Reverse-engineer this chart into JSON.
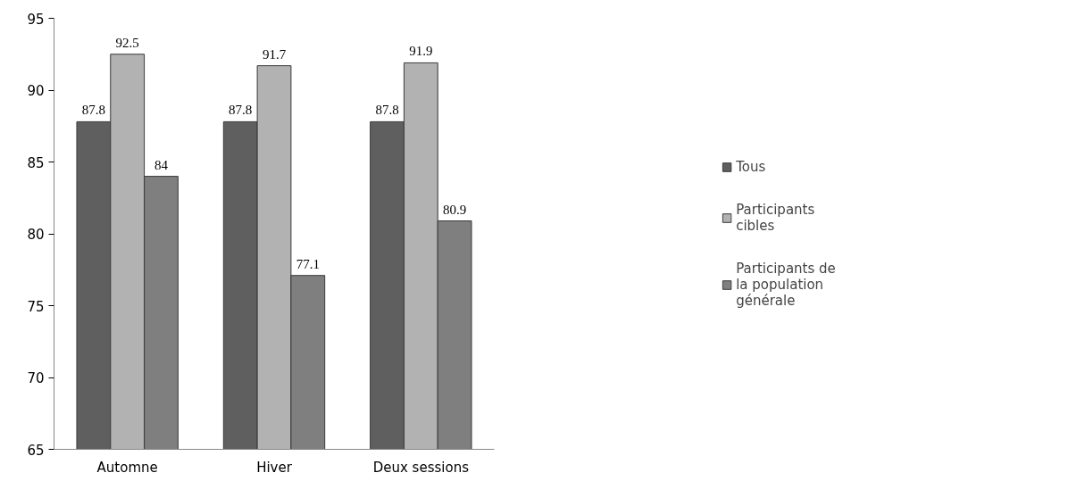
{
  "chart_data": {
    "type": "bar",
    "categories": [
      "Automne",
      "Hiver",
      "Deux sessions"
    ],
    "series": [
      {
        "name": "Tous",
        "color": "#5f5f5f",
        "values": [
          87.8,
          87.8,
          87.8
        ]
      },
      {
        "name": "Participants cibles",
        "color": "#b2b2b2",
        "values": [
          92.5,
          91.7,
          91.9
        ]
      },
      {
        "name": "Participants de la population générale",
        "color": "#7f7f7f",
        "values": [
          84,
          77.1,
          80.9
        ]
      }
    ],
    "ylim": [
      65,
      95
    ],
    "yticks": [
      65,
      70,
      75,
      80,
      85,
      90,
      95
    ],
    "grid": false,
    "legend": "right",
    "data_labels": true
  }
}
